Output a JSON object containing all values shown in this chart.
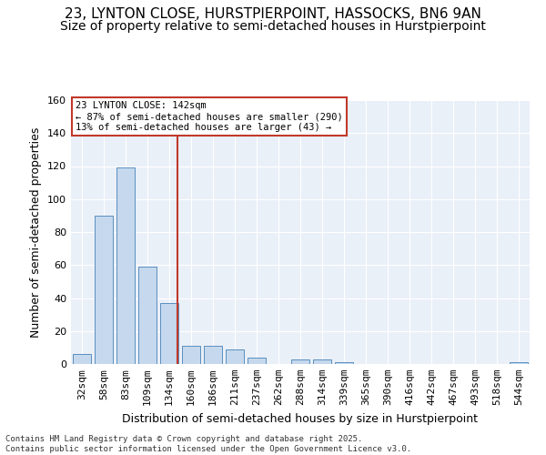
{
  "title_line1": "23, LYNTON CLOSE, HURSTPIERPOINT, HASSOCKS, BN6 9AN",
  "title_line2": "Size of property relative to semi-detached houses in Hurstpierpoint",
  "xlabel": "Distribution of semi-detached houses by size in Hurstpierpoint",
  "ylabel": "Number of semi-detached properties",
  "categories": [
    "32sqm",
    "58sqm",
    "83sqm",
    "109sqm",
    "134sqm",
    "160sqm",
    "186sqm",
    "211sqm",
    "237sqm",
    "262sqm",
    "288sqm",
    "314sqm",
    "339sqm",
    "365sqm",
    "390sqm",
    "416sqm",
    "442sqm",
    "467sqm",
    "493sqm",
    "518sqm",
    "544sqm"
  ],
  "values": [
    6,
    90,
    119,
    59,
    37,
    11,
    11,
    9,
    4,
    0,
    3,
    3,
    1,
    0,
    0,
    0,
    0,
    0,
    0,
    0,
    1
  ],
  "bar_color": "#c5d8ed",
  "bar_edge_color": "#5a8fc0",
  "vline_color": "#c0392b",
  "annotation_text": "23 LYNTON CLOSE: 142sqm\n← 87% of semi-detached houses are smaller (290)\n13% of semi-detached houses are larger (43) →",
  "ylim": [
    0,
    160
  ],
  "yticks": [
    0,
    20,
    40,
    60,
    80,
    100,
    120,
    140,
    160
  ],
  "background_color": "#eaf0f8",
  "footer_text": "Contains HM Land Registry data © Crown copyright and database right 2025.\nContains public sector information licensed under the Open Government Licence v3.0.",
  "grid_color": "#ffffff",
  "title_fontsize": 11,
  "subtitle_fontsize": 10,
  "axis_fontsize": 9,
  "tick_fontsize": 8,
  "vline_pos": 4.38
}
